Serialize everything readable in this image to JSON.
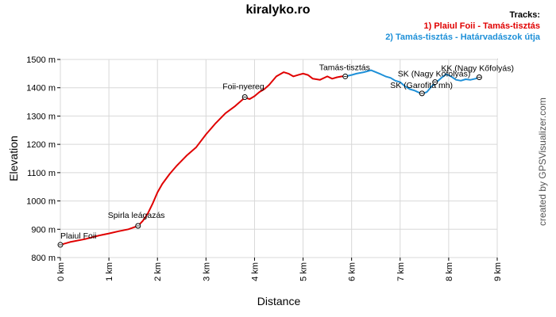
{
  "title": "kiralyko.ro",
  "legend": {
    "heading": "Tracks:",
    "items": [
      {
        "label": "1) Plaiul Foii - Tamás-tisztás",
        "color": "#e00000"
      },
      {
        "label": "2) Tamás-tisztás - Határvadászok útja",
        "color": "#1e90d8"
      }
    ]
  },
  "credit": "created by GPSVisualizer.com",
  "chart_data": {
    "type": "line",
    "xlabel": "Distance",
    "ylabel": "Elevation",
    "xlim": [
      0,
      9
    ],
    "ylim": [
      800,
      1500
    ],
    "grid": true,
    "x_tick_labels": [
      "0 km",
      "1 km",
      "2 km",
      "3 km",
      "4 km",
      "5 km",
      "6 km",
      "7 km",
      "8 km",
      "9 km"
    ],
    "y_tick_labels": [
      "800 m",
      "900 m",
      "1000 m",
      "1100 m",
      "1200 m",
      "1300 m",
      "1400 m",
      "1500 m"
    ],
    "series": [
      {
        "name": "1) Plaiul Foii - Tamás-tisztás",
        "color": "#e00000",
        "x": [
          0,
          0.2,
          0.5,
          0.8,
          1.0,
          1.2,
          1.4,
          1.6,
          1.7,
          1.8,
          1.9,
          2.0,
          2.1,
          2.25,
          2.4,
          2.6,
          2.8,
          3.0,
          3.2,
          3.4,
          3.6,
          3.8,
          3.9,
          4.0,
          4.1,
          4.2,
          4.3,
          4.45,
          4.6,
          4.7,
          4.8,
          4.9,
          5.0,
          5.1,
          5.2,
          5.35,
          5.5,
          5.6,
          5.7,
          5.8,
          5.87
        ],
        "y": [
          845,
          855,
          865,
          878,
          885,
          893,
          900,
          912,
          930,
          955,
          990,
          1030,
          1060,
          1095,
          1125,
          1160,
          1190,
          1235,
          1275,
          1310,
          1335,
          1365,
          1360,
          1370,
          1385,
          1395,
          1410,
          1440,
          1455,
          1450,
          1440,
          1445,
          1450,
          1445,
          1432,
          1428,
          1440,
          1432,
          1437,
          1440,
          1440
        ]
      },
      {
        "name": "2) Tamás-tisztás - Határvadászok útja",
        "color": "#1e90d8",
        "x": [
          5.87,
          6.0,
          6.1,
          6.25,
          6.4,
          6.5,
          6.6,
          6.7,
          6.8,
          6.9,
          7.0,
          7.1,
          7.2,
          7.3,
          7.45,
          7.55,
          7.65,
          7.75,
          7.85,
          7.95,
          8.05,
          8.15,
          8.25,
          8.35,
          8.45,
          8.55,
          8.63
        ],
        "y": [
          1440,
          1445,
          1450,
          1455,
          1462,
          1455,
          1448,
          1440,
          1435,
          1425,
          1420,
          1405,
          1395,
          1390,
          1378,
          1385,
          1405,
          1420,
          1435,
          1448,
          1440,
          1428,
          1425,
          1430,
          1428,
          1432,
          1437
        ]
      }
    ],
    "waypoints": [
      {
        "label": "Plaiul Foii",
        "x": 0.0,
        "y": 845
      },
      {
        "label": "Spirla leágazás",
        "x": 1.6,
        "y": 912
      },
      {
        "label": "Foii-nyereg",
        "x": 3.8,
        "y": 1367
      },
      {
        "label": "Tamás-tisztás",
        "x": 5.87,
        "y": 1440
      },
      {
        "label": "SK (Garofita mh)",
        "x": 7.45,
        "y": 1380
      },
      {
        "label": "SK (Nagy Kőfolyás)",
        "x": 7.72,
        "y": 1420
      },
      {
        "label": "KK (Nagy Kőfolyás)",
        "x": 8.63,
        "y": 1437
      }
    ]
  }
}
